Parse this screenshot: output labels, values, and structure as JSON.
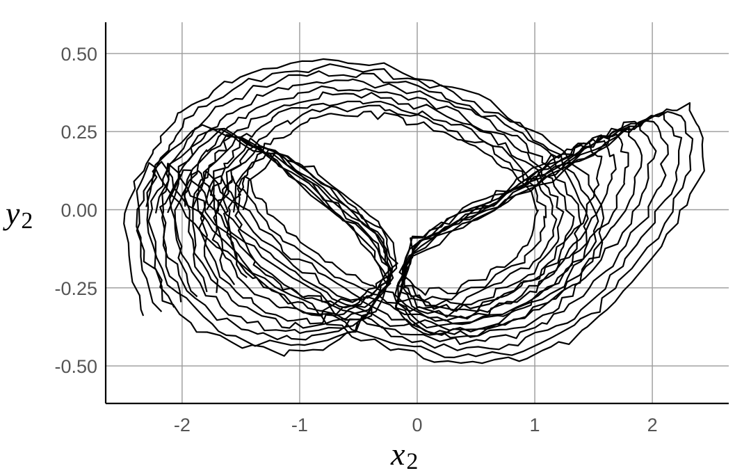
{
  "chart_data": {
    "type": "line",
    "title": "",
    "xlabel": {
      "var": "x",
      "sub": "2"
    },
    "ylabel": {
      "var": "y",
      "sub": "2"
    },
    "xlim": [
      -2.65,
      2.65
    ],
    "ylim": [
      -0.62,
      0.6
    ],
    "grid": true,
    "legend": "none",
    "color": "#000000",
    "x_ticks": [
      {
        "value": -2,
        "label": "-2"
      },
      {
        "value": -1,
        "label": "-1"
      },
      {
        "value": 0,
        "label": "0"
      },
      {
        "value": 1,
        "label": "1"
      },
      {
        "value": 2,
        "label": "2"
      }
    ],
    "y_ticks": [
      {
        "value": 0.5,
        "label": "0.50"
      },
      {
        "value": 0.25,
        "label": "0.25"
      },
      {
        "value": 0,
        "label": "0.00"
      },
      {
        "value": -0.25,
        "label": "-0.25"
      },
      {
        "value": -0.5,
        "label": "-0.50"
      }
    ],
    "series": [
      {
        "x": [
          -2.3,
          -2.45,
          -2.5,
          -2.35,
          -2.2,
          -2.05,
          -1.8,
          -1.5,
          -1.1,
          -0.7,
          -0.3,
          0.1,
          0.5,
          0.9,
          1.2,
          1.45,
          1.6,
          1.55,
          1.3,
          0.9,
          0.5,
          0.1,
          -0.2,
          -0.05,
          0.4,
          0.9,
          1.35,
          1.75,
          2.05,
          2.3,
          2.45,
          2.4,
          2.2,
          1.9,
          1.6,
          1.3,
          0.95,
          0.55,
          0.15,
          -0.25,
          -0.65,
          -1.05,
          -1.45,
          -1.8,
          -2.1,
          -2.3,
          -2.4,
          -2.35,
          -2.15,
          -1.85,
          -1.5,
          -1.15,
          -0.8,
          -0.5,
          -0.25,
          -0.45,
          -0.9,
          -1.4,
          -1.85,
          -2.2,
          -2.35
        ],
        "y": [
          -0.35,
          -0.2,
          0.0,
          0.12,
          0.22,
          0.3,
          0.37,
          0.43,
          0.47,
          0.48,
          0.46,
          0.42,
          0.36,
          0.28,
          0.2,
          0.1,
          -0.02,
          -0.14,
          -0.25,
          -0.34,
          -0.4,
          -0.41,
          -0.32,
          -0.15,
          -0.05,
          0.05,
          0.15,
          0.24,
          0.31,
          0.33,
          0.24,
          0.1,
          -0.05,
          -0.2,
          -0.33,
          -0.42,
          -0.47,
          -0.49,
          -0.48,
          -0.44,
          -0.38,
          -0.3,
          -0.2,
          -0.08,
          0.05,
          0.16,
          0.05,
          -0.12,
          -0.28,
          -0.38,
          -0.44,
          -0.46,
          -0.44,
          -0.38,
          -0.25,
          -0.1,
          0.05,
          0.2,
          0.28,
          0.15,
          -0.05
        ]
      }
    ]
  }
}
